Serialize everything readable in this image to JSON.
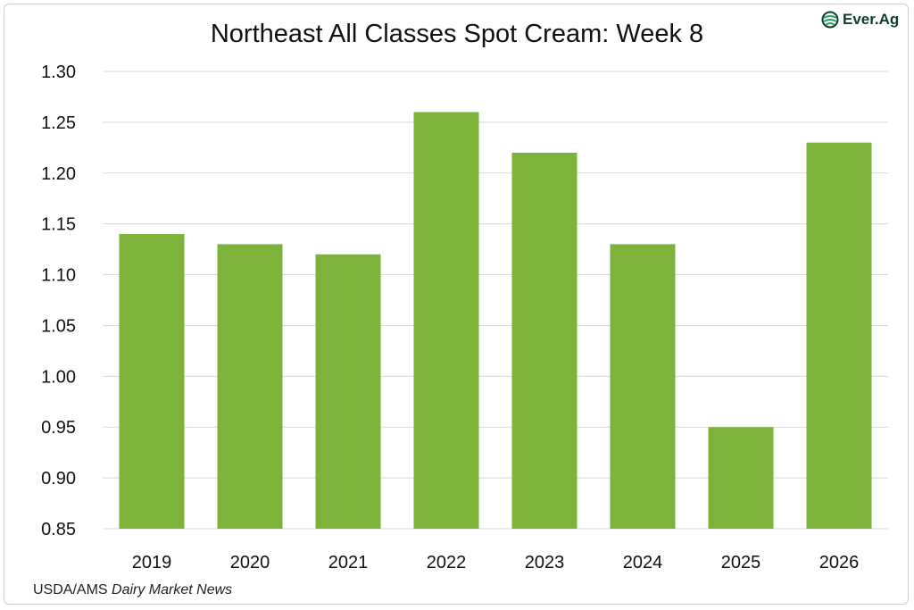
{
  "chart_data": {
    "type": "bar",
    "title": "Northeast All Classes Spot Cream: Week 8",
    "categories": [
      "2019",
      "2020",
      "2021",
      "2022",
      "2023",
      "2024",
      "2025",
      "2026"
    ],
    "values": [
      1.14,
      1.13,
      1.12,
      1.26,
      1.22,
      1.13,
      0.95,
      1.23
    ],
    "xlabel": "",
    "ylabel": "",
    "ylim": [
      0.85,
      1.3
    ],
    "yticks": [
      "0.85",
      "0.90",
      "0.95",
      "1.00",
      "1.05",
      "1.10",
      "1.15",
      "1.20",
      "1.25",
      "1.30"
    ],
    "grid": true,
    "legend": "none",
    "bar_color": "#7cb33a"
  },
  "logo": {
    "text": "Ever.Ag",
    "icon": "globe-icon",
    "color": "#0f3d2e",
    "accent": "#2e9e6a"
  },
  "source": {
    "prefix": "USDA/AMS ",
    "publication": "Dairy Market News"
  }
}
